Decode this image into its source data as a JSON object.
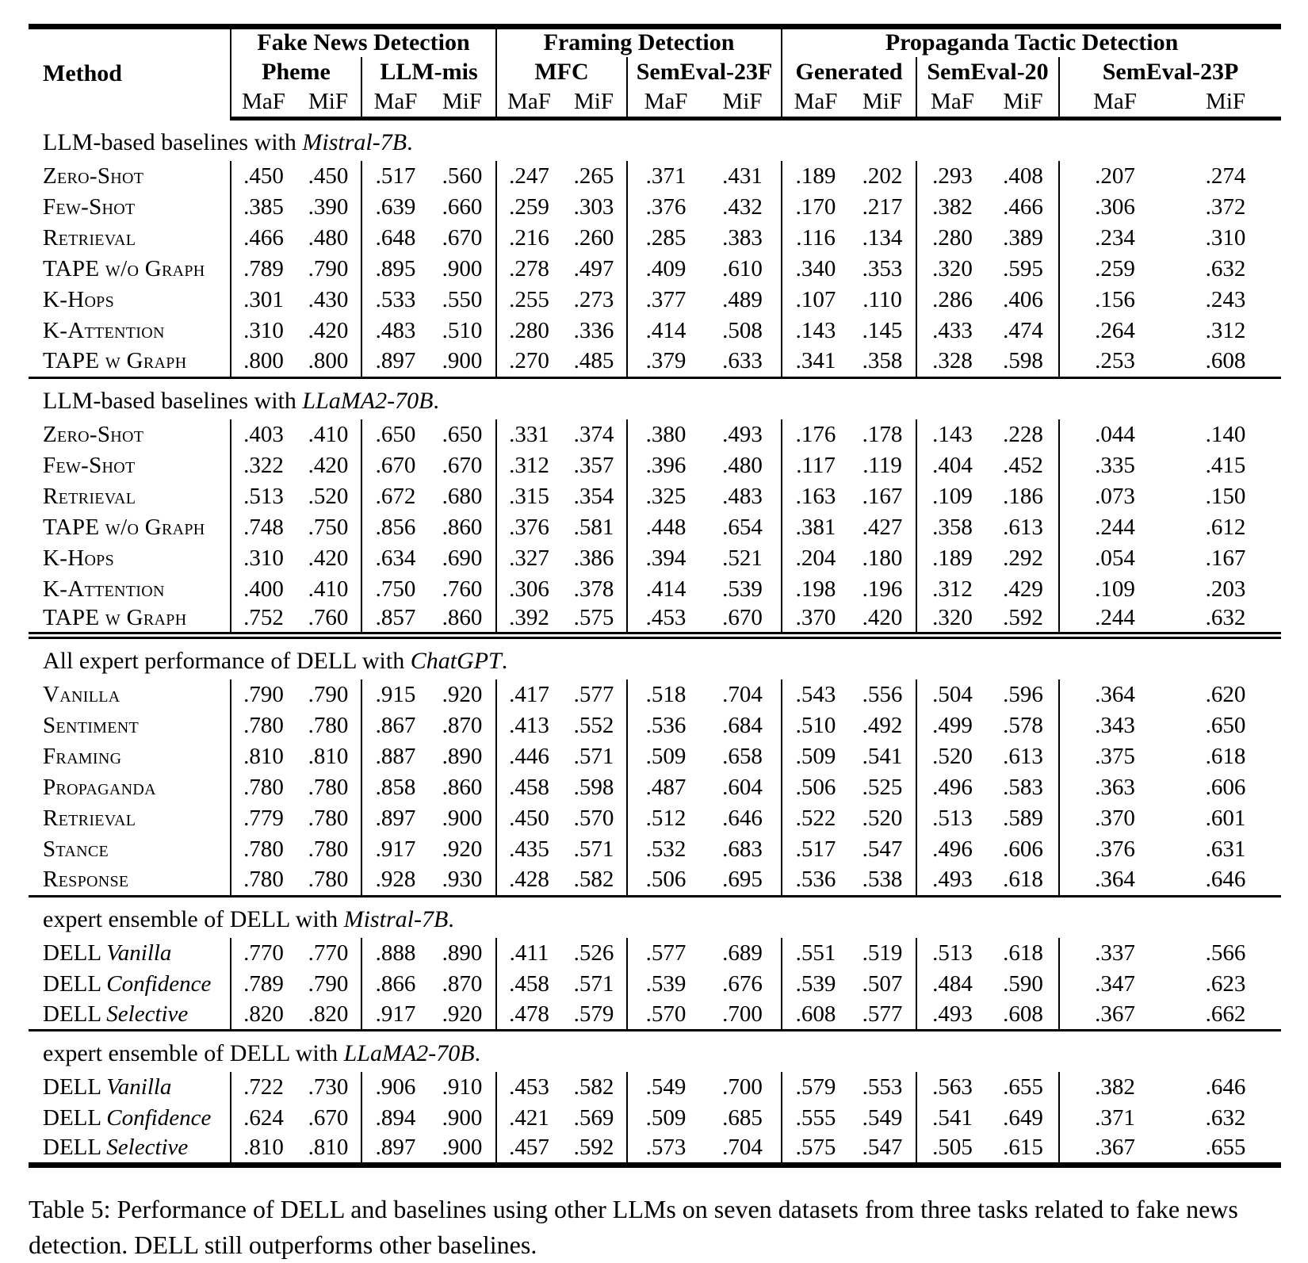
{
  "page": {
    "caption": "Table 5: Performance of DELL and baselines using other LLMs on seven datasets from three tasks related to fake news detection. DELL still outperforms other baselines."
  },
  "table": {
    "method_header": "Method",
    "metrics": [
      "MaF",
      "MiF"
    ],
    "groups": [
      {
        "label": "Fake News Detection",
        "datasets": [
          "Pheme",
          "LLM-mis"
        ]
      },
      {
        "label": "Framing Detection",
        "datasets": [
          "MFC",
          "SemEval-23F"
        ]
      },
      {
        "label": "Propaganda Tactic Detection",
        "datasets": [
          "Generated",
          "SemEval-20",
          "SemEval-23P"
        ]
      }
    ],
    "sections": [
      {
        "rule": "none",
        "title": {
          "prefix": "LLM-based baselines with ",
          "emph": "Mistral-7B",
          "suffix": "."
        },
        "rows": [
          {
            "label": {
              "sc": "Zero-Shot"
            },
            "values": [
              ".450",
              ".450",
              ".517",
              ".560",
              ".247",
              ".265",
              ".371",
              ".431",
              ".189",
              ".202",
              ".293",
              ".408",
              ".207",
              ".274"
            ]
          },
          {
            "label": {
              "sc": "Few-Shot"
            },
            "values": [
              ".385",
              ".390",
              ".639",
              ".660",
              ".259",
              ".303",
              ".376",
              ".432",
              ".170",
              ".217",
              ".382",
              ".466",
              ".306",
              ".372"
            ]
          },
          {
            "label": {
              "sc": "Retrieval"
            },
            "values": [
              ".466",
              ".480",
              ".648",
              ".670",
              ".216",
              ".260",
              ".285",
              ".383",
              ".116",
              ".134",
              ".280",
              ".389",
              ".234",
              ".310"
            ]
          },
          {
            "label": {
              "sc": "TAPE w/o Graph"
            },
            "values": [
              ".789",
              ".790",
              ".895",
              ".900",
              ".278",
              ".497",
              ".409",
              ".610",
              ".340",
              ".353",
              ".320",
              ".595",
              ".259",
              ".632"
            ]
          },
          {
            "label": {
              "sc": "K-Hops"
            },
            "values": [
              ".301",
              ".430",
              ".533",
              ".550",
              ".255",
              ".273",
              ".377",
              ".489",
              ".107",
              ".110",
              ".286",
              ".406",
              ".156",
              ".243"
            ]
          },
          {
            "label": {
              "sc": "K-Attention"
            },
            "values": [
              ".310",
              ".420",
              ".483",
              ".510",
              ".280",
              ".336",
              ".414",
              ".508",
              ".143",
              ".145",
              ".433",
              ".474",
              ".264",
              ".312"
            ]
          },
          {
            "label": {
              "sc": "TAPE w Graph"
            },
            "values": [
              ".800",
              ".800",
              ".897",
              ".900",
              ".270",
              ".485",
              ".379",
              ".633",
              ".341",
              ".358",
              ".328",
              ".598",
              ".253",
              ".608"
            ]
          }
        ]
      },
      {
        "rule": "single",
        "title": {
          "prefix": "LLM-based baselines with ",
          "emph": "LLaMA2-70B",
          "suffix": "."
        },
        "rows": [
          {
            "label": {
              "sc": "Zero-Shot"
            },
            "values": [
              ".403",
              ".410",
              ".650",
              ".650",
              ".331",
              ".374",
              ".380",
              ".493",
              ".176",
              ".178",
              ".143",
              ".228",
              ".044",
              ".140"
            ]
          },
          {
            "label": {
              "sc": "Few-Shot"
            },
            "values": [
              ".322",
              ".420",
              ".670",
              ".670",
              ".312",
              ".357",
              ".396",
              ".480",
              ".117",
              ".119",
              ".404",
              ".452",
              ".335",
              ".415"
            ]
          },
          {
            "label": {
              "sc": "Retrieval"
            },
            "values": [
              ".513",
              ".520",
              ".672",
              ".680",
              ".315",
              ".354",
              ".325",
              ".483",
              ".163",
              ".167",
              ".109",
              ".186",
              ".073",
              ".150"
            ]
          },
          {
            "label": {
              "sc": "TAPE w/o Graph"
            },
            "values": [
              ".748",
              ".750",
              ".856",
              ".860",
              ".376",
              ".581",
              ".448",
              ".654",
              ".381",
              ".427",
              ".358",
              ".613",
              ".244",
              ".612"
            ]
          },
          {
            "label": {
              "sc": "K-Hops"
            },
            "values": [
              ".310",
              ".420",
              ".634",
              ".690",
              ".327",
              ".386",
              ".394",
              ".521",
              ".204",
              ".180",
              ".189",
              ".292",
              ".054",
              ".167"
            ]
          },
          {
            "label": {
              "sc": "K-Attention"
            },
            "values": [
              ".400",
              ".410",
              ".750",
              ".760",
              ".306",
              ".378",
              ".414",
              ".539",
              ".198",
              ".196",
              ".312",
              ".429",
              ".109",
              ".203"
            ]
          },
          {
            "label": {
              "sc": "TAPE w Graph"
            },
            "values": [
              ".752",
              ".760",
              ".857",
              ".860",
              ".392",
              ".575",
              ".453",
              ".670",
              ".370",
              ".420",
              ".320",
              ".592",
              ".244",
              ".632"
            ]
          }
        ]
      },
      {
        "rule": "double",
        "title": {
          "prefix": "All expert performance of DELL with ",
          "emph": "ChatGPT",
          "suffix": "."
        },
        "rows": [
          {
            "label": {
              "sc": "Vanilla"
            },
            "values": [
              ".790",
              ".790",
              ".915",
              ".920",
              ".417",
              ".577",
              ".518",
              ".704",
              ".543",
              ".556",
              ".504",
              ".596",
              ".364",
              ".620"
            ]
          },
          {
            "label": {
              "sc": "Sentiment"
            },
            "values": [
              ".780",
              ".780",
              ".867",
              ".870",
              ".413",
              ".552",
              ".536",
              ".684",
              ".510",
              ".492",
              ".499",
              ".578",
              ".343",
              ".650"
            ]
          },
          {
            "label": {
              "sc": "Framing"
            },
            "values": [
              ".810",
              ".810",
              ".887",
              ".890",
              ".446",
              ".571",
              ".509",
              ".658",
              ".509",
              ".541",
              ".520",
              ".613",
              ".375",
              ".618"
            ]
          },
          {
            "label": {
              "sc": "Propaganda"
            },
            "values": [
              ".780",
              ".780",
              ".858",
              ".860",
              ".458",
              ".598",
              ".487",
              ".604",
              ".506",
              ".525",
              ".496",
              ".583",
              ".363",
              ".606"
            ]
          },
          {
            "label": {
              "sc": "Retrieval"
            },
            "values": [
              ".779",
              ".780",
              ".897",
              ".900",
              ".450",
              ".570",
              ".512",
              ".646",
              ".522",
              ".520",
              ".513",
              ".589",
              ".370",
              ".601"
            ]
          },
          {
            "label": {
              "sc": "Stance"
            },
            "values": [
              ".780",
              ".780",
              ".917",
              ".920",
              ".435",
              ".571",
              ".532",
              ".683",
              ".517",
              ".547",
              ".496",
              ".606",
              ".376",
              ".631"
            ]
          },
          {
            "label": {
              "sc": "Response"
            },
            "values": [
              ".780",
              ".780",
              ".928",
              ".930",
              ".428",
              ".582",
              ".506",
              ".695",
              ".536",
              ".538",
              ".493",
              ".618",
              ".364",
              ".646"
            ]
          }
        ]
      },
      {
        "rule": "single",
        "title": {
          "prefix": "expert ensemble of DELL with ",
          "emph": "Mistral-7B",
          "suffix": "."
        },
        "rows": [
          {
            "label": {
              "plain": "DELL ",
              "em": "Vanilla"
            },
            "values": [
              ".770",
              ".770",
              ".888",
              ".890",
              ".411",
              ".526",
              ".577",
              ".689",
              ".551",
              ".519",
              ".513",
              ".618",
              ".337",
              ".566"
            ]
          },
          {
            "label": {
              "plain": "DELL ",
              "em": "Confidence"
            },
            "values": [
              ".789",
              ".790",
              ".866",
              ".870",
              ".458",
              ".571",
              ".539",
              ".676",
              ".539",
              ".507",
              ".484",
              ".590",
              ".347",
              ".623"
            ]
          },
          {
            "label": {
              "plain": "DELL ",
              "em": "Selective"
            },
            "values": [
              ".820",
              ".820",
              ".917",
              ".920",
              ".478",
              ".579",
              ".570",
              ".700",
              ".608",
              ".577",
              ".493",
              ".608",
              ".367",
              ".662"
            ]
          }
        ]
      },
      {
        "rule": "single",
        "title": {
          "prefix": "expert ensemble of DELL with ",
          "emph": "LLaMA2-70B",
          "suffix": "."
        },
        "rows": [
          {
            "label": {
              "plain": "DELL ",
              "em": "Vanilla"
            },
            "values": [
              ".722",
              ".730",
              ".906",
              ".910",
              ".453",
              ".582",
              ".549",
              ".700",
              ".579",
              ".553",
              ".563",
              ".655",
              ".382",
              ".646"
            ]
          },
          {
            "label": {
              "plain": "DELL ",
              "em": "Confidence"
            },
            "values": [
              ".624",
              ".670",
              ".894",
              ".900",
              ".421",
              ".569",
              ".509",
              ".685",
              ".555",
              ".549",
              ".541",
              ".649",
              ".371",
              ".632"
            ]
          },
          {
            "label": {
              "plain": "DELL ",
              "em": "Selective"
            },
            "values": [
              ".810",
              ".810",
              ".897",
              ".900",
              ".457",
              ".592",
              ".573",
              ".704",
              ".575",
              ".547",
              ".505",
              ".615",
              ".367",
              ".655"
            ]
          }
        ]
      }
    ]
  }
}
